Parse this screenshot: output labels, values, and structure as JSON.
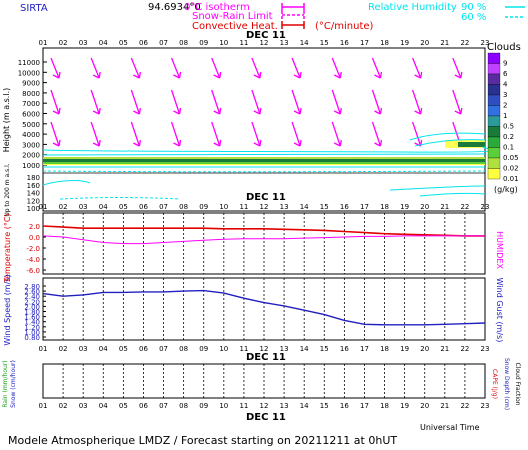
{
  "header": {
    "station": "SIRTA",
    "coords": "94.6934°0",
    "legend": {
      "isotherm_label": "0°C isotherm",
      "snow_rain_label": "Snow-Rain Limit",
      "convective_label": "Convective Heat.",
      "convective_unit": "(°C/minute)",
      "rh_label": "Relative Humidity",
      "rh90": "90 %",
      "rh60": "60 %"
    }
  },
  "footer": {
    "universal_time": "Universal Time",
    "forecast_text": "Modele Atmospherique LMDZ / Forecast starting on 20211211 at 0hUT"
  },
  "colors": {
    "magenta": "#ff00ff",
    "cyan": "#00e5ee",
    "red": "#e00000",
    "blue": "#2020c0",
    "green": "#20a020"
  },
  "chart_data": [
    {
      "type": "heatmap",
      "panel": "cloud-profile",
      "date_label": "DEC 11",
      "x_ticks": [
        "01",
        "02",
        "03",
        "04",
        "05",
        "06",
        "07",
        "08",
        "09",
        "10",
        "11",
        "12",
        "13",
        "14",
        "15",
        "16",
        "17",
        "18",
        "19",
        "20",
        "21",
        "22",
        "23"
      ],
      "ylabel": "Height (m a.s.l.)",
      "ylabel_lower": "Up to 200 m a.s.l.",
      "y_ticks_upper": [
        "11000",
        "10000",
        "9000",
        "8000",
        "7000",
        "6000",
        "5000",
        "4000",
        "3000",
        "2000",
        "1000"
      ],
      "y_ticks_lower": [
        "180",
        "160",
        "140",
        "120",
        "100"
      ],
      "colorbar": {
        "title": "Clouds",
        "unit": "(g/kg)",
        "levels": [
          "9",
          "6",
          "4",
          "3",
          "2",
          "1",
          "0.5",
          "0.2",
          "0.1",
          "0.05",
          "0.02",
          "0.01"
        ],
        "colors": [
          "#8b00ff",
          "#c040ff",
          "#5a2aa0",
          "#2a3090",
          "#2f4fc0",
          "#3070e0",
          "#2a9a9a",
          "#1a7a3a",
          "#2aaa3a",
          "#5acf3a",
          "#b0e040",
          "#ffff40"
        ]
      },
      "wind_direction": "northwest",
      "cloud_layer_height_m": 1000
    },
    {
      "type": "line",
      "panel": "temperature",
      "x_ticks": [
        "01",
        "02",
        "03",
        "04",
        "05",
        "06",
        "07",
        "08",
        "09",
        "10",
        "11",
        "12",
        "13",
        "14",
        "15",
        "16",
        "17",
        "18",
        "19",
        "20",
        "21",
        "22",
        "23"
      ],
      "ylabel": "Temperature (°C)",
      "ylabel_right": "HUMIDEX",
      "y_ticks": [
        "2.0",
        "0.0",
        "-2.0",
        "-4.0",
        "-6.0"
      ],
      "ylim": [
        -6.0,
        2.5
      ],
      "series": [
        {
          "values": [
            2.0,
            1.8,
            1.6,
            1.6,
            1.6,
            1.6,
            1.6,
            1.6,
            1.6,
            1.5,
            1.5,
            1.5,
            1.4,
            1.3,
            1.2,
            1.0,
            0.8,
            0.6,
            0.5,
            0.4,
            0.3,
            0.2,
            0.2
          ]
        },
        {
          "values": [
            0.2,
            0.0,
            -0.5,
            -1.0,
            -1.2,
            -1.2,
            -1.0,
            -0.8,
            -0.6,
            -0.4,
            -0.3,
            -0.3,
            -0.3,
            -0.2,
            -0.1,
            0.0,
            0.1,
            0.1,
            0.2,
            0.2,
            0.2,
            0.2,
            0.2
          ]
        }
      ]
    },
    {
      "type": "line",
      "panel": "wind",
      "x_ticks": [
        "01",
        "02",
        "03",
        "04",
        "05",
        "06",
        "07",
        "08",
        "09",
        "10",
        "11",
        "12",
        "13",
        "14",
        "15",
        "16",
        "17",
        "18",
        "19",
        "20",
        "21",
        "22",
        "23"
      ],
      "ylabel": "Wind Speed (m/s)",
      "ylabel_right": "Wind Gust (m/s)",
      "y_ticks": [
        "2.80",
        "2.60",
        "2.40",
        "2.20",
        "2.00",
        "1.80",
        "1.60",
        "1.40",
        "1.20",
        "1.00",
        "0.80"
      ],
      "ylim": [
        0.8,
        2.9
      ],
      "date_label": "DEC 11",
      "series": [
        {
          "values": [
            2.5,
            2.4,
            2.45,
            2.55,
            2.55,
            2.57,
            2.57,
            2.6,
            2.62,
            2.52,
            2.32,
            2.15,
            2.02,
            1.85,
            1.68,
            1.45,
            1.3,
            1.28,
            1.28,
            1.28,
            1.3,
            1.32,
            1.35
          ]
        }
      ]
    },
    {
      "type": "line",
      "panel": "precipitation",
      "x_ticks": [
        "01",
        "02",
        "03",
        "04",
        "05",
        "06",
        "07",
        "08",
        "09",
        "10",
        "11",
        "12",
        "13",
        "14",
        "15",
        "16",
        "17",
        "18",
        "19",
        "20",
        "21",
        "22",
        "23"
      ],
      "ylabel": "Rain (mm/hour)",
      "ylabel2": "Snow (cm/hour)",
      "ylabel_right": "CAPE (J/g)",
      "ylabel_right2": "Snow Depth (cm)",
      "ylabel_right3": "Cloud Fraction",
      "date_label": "DEC 11",
      "series": []
    }
  ]
}
